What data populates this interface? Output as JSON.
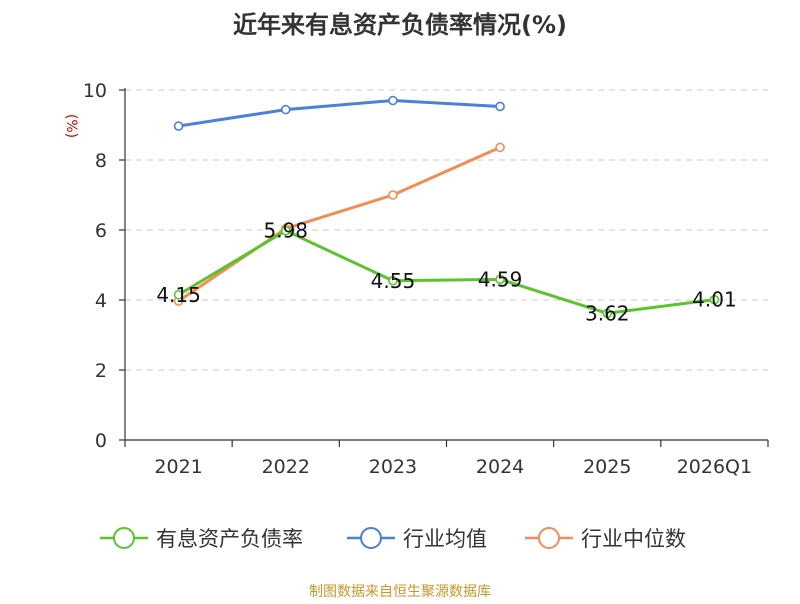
{
  "chart_data": {
    "type": "line",
    "title": "近年来有息资产负债率情况(%)",
    "ylabel": "(%)",
    "xlabel": "",
    "categories": [
      "2021",
      "2022",
      "2023",
      "2024",
      "2025",
      "2026Q1"
    ],
    "ylim": [
      0,
      10
    ],
    "yticks": [
      0,
      2,
      4,
      6,
      8,
      10
    ],
    "grid": true,
    "legend_position": "bottom",
    "series": [
      {
        "name": "有息资产负债率",
        "color": "#5ac42e",
        "values": [
          4.15,
          5.98,
          4.55,
          4.59,
          3.62,
          4.01
        ],
        "labels": [
          "4.15",
          "5.98",
          "4.55",
          "4.59",
          "3.62",
          "4.01"
        ]
      },
      {
        "name": "行业均值",
        "color": "#4a7fdb",
        "values": [
          8.97,
          9.44,
          9.7,
          9.53,
          null,
          null
        ]
      },
      {
        "name": "行业中位数",
        "color": "#f28d55",
        "values": [
          3.97,
          6.04,
          7.0,
          8.36,
          null,
          null
        ]
      }
    ],
    "source": "制图数据来自恒生聚源数据库",
    "title_color": "#333333",
    "ylabel_color": "#cc0000",
    "source_color": "#c9962a"
  }
}
